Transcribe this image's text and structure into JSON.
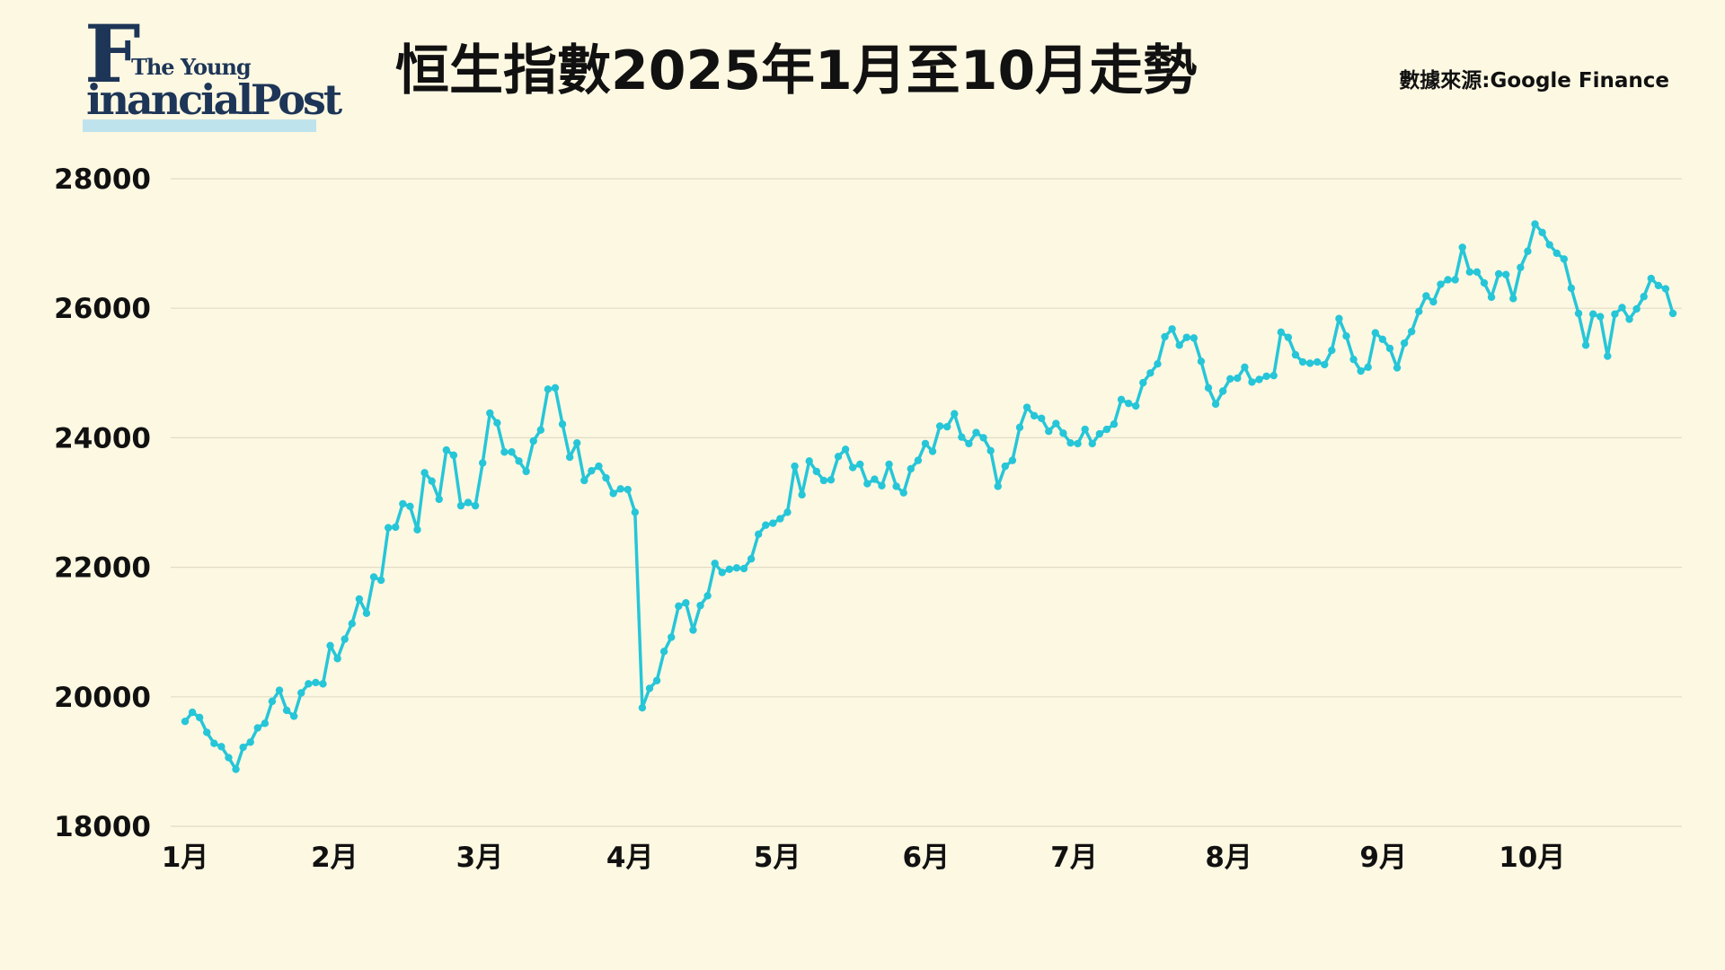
{
  "logo": {
    "line1": "The Young",
    "big_letter": "F",
    "line2": "inancialPost"
  },
  "title": "恒生指數2025年1月至10月走勢",
  "source": "數據來源:Google  Finance",
  "colors": {
    "background": "#fdf8e2",
    "line": "#26c6d8",
    "grid": "#e2dcc6",
    "logo": "#1d3557",
    "logo_bar": "#bfe3ec"
  },
  "chart_data": {
    "type": "line",
    "title": "恒生指數2025年1月至10月走勢",
    "xlabel": "",
    "ylabel": "",
    "ylim": [
      18000,
      28000
    ],
    "yticks": [
      "28000",
      "26000",
      "24000",
      "22000",
      "20000",
      "18000"
    ],
    "months": [
      {
        "label": "1月",
        "pos": 0
      },
      {
        "label": "2月",
        "pos": 20.6
      },
      {
        "label": "3月",
        "pos": 40.6
      },
      {
        "label": "4月",
        "pos": 61.3
      },
      {
        "label": "5月",
        "pos": 81.6
      },
      {
        "label": "6月",
        "pos": 102.1
      },
      {
        "label": "7月",
        "pos": 122.5
      },
      {
        "label": "8月",
        "pos": 143.8
      },
      {
        "label": "9月",
        "pos": 165.1
      },
      {
        "label": "10月",
        "pos": 185.6
      }
    ],
    "grid": true,
    "series": [
      {
        "values": [
          19620,
          19760,
          19680,
          19450,
          19280,
          19230,
          19060,
          18880,
          19220,
          19300,
          19520,
          19590,
          19930,
          20100,
          19790,
          19700,
          20060,
          20200,
          20220,
          20200,
          20790,
          20590,
          20890,
          21130,
          21510,
          21290,
          21850,
          21800,
          22610,
          22620,
          22980,
          22940,
          22580,
          23460,
          23330,
          23050,
          23810,
          23730,
          22950,
          23000,
          22950,
          23610,
          24380,
          24230,
          23780,
          23780,
          23640,
          23480,
          23950,
          24120,
          24750,
          24770,
          24210,
          23700,
          23920,
          23340,
          23490,
          23560,
          23380,
          23140,
          23210,
          23200,
          22850,
          19830,
          20130,
          20250,
          20700,
          20920,
          21400,
          21450,
          21030,
          21410,
          21560,
          22060,
          21920,
          21970,
          21990,
          21980,
          22130,
          22510,
          22650,
          22680,
          22750,
          22850,
          23560,
          23120,
          23640,
          23480,
          23340,
          23350,
          23710,
          23820,
          23540,
          23590,
          23290,
          23360,
          23260,
          23590,
          23250,
          23150,
          23520,
          23650,
          23910,
          23790,
          24180,
          24170,
          24370,
          24010,
          23910,
          24080,
          24000,
          23800,
          23250,
          23560,
          23650,
          24160,
          24470,
          24340,
          24300,
          24100,
          24220,
          24070,
          23920,
          23910,
          24130,
          23910,
          24060,
          24130,
          24210,
          24590,
          24530,
          24490,
          24850,
          25000,
          25140,
          25560,
          25680,
          25430,
          25550,
          25540,
          25180,
          24770,
          24520,
          24720,
          24910,
          24920,
          25090,
          24860,
          24900,
          24950,
          24960,
          25630,
          25550,
          25280,
          25170,
          25150,
          25170,
          25130,
          25350,
          25840,
          25570,
          25210,
          25030,
          25090,
          25620,
          25520,
          25380,
          25080,
          25460,
          25640,
          25950,
          26190,
          26100,
          26370,
          26440,
          26440,
          26940,
          26560,
          26560,
          26390,
          26170,
          26530,
          26520,
          26150,
          26630,
          26880,
          27300,
          27170,
          26980,
          26850,
          26760,
          26310,
          25920,
          25430,
          25910,
          25870,
          25260,
          25910,
          26010,
          25830,
          25990,
          26180,
          26460,
          26350,
          26300,
          25920
        ]
      }
    ]
  }
}
